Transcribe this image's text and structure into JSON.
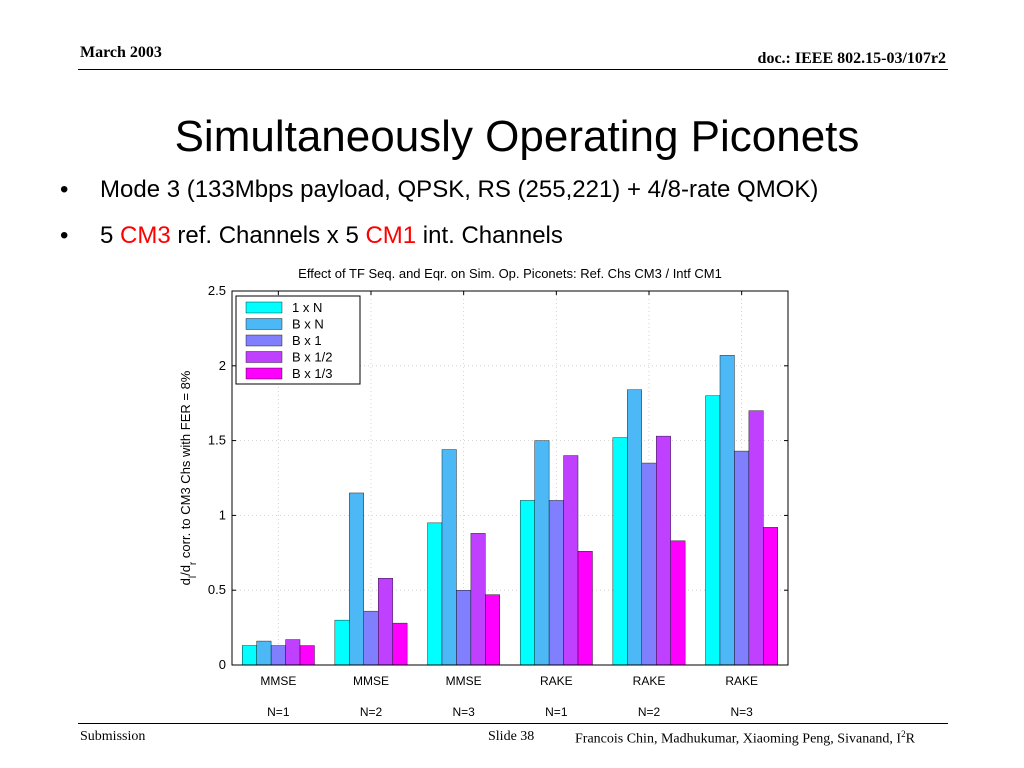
{
  "header": {
    "date": "March 2003",
    "doc": "doc.: IEEE 802.15-03/107r2"
  },
  "title": "Simultaneously Operating Piconets",
  "bullets": {
    "b1": "Mode 3 (133Mbps payload, QPSK, RS (255,221) + 4/8-rate QMOK)",
    "b2": {
      "pre": "5 ",
      "ref": "CM3",
      "mid": " ref. Channels x 5 ",
      "int": "CM1",
      "post": " int. Channels"
    },
    "bullet_glyph": "•"
  },
  "colors": {
    "highlight": "#ff0000",
    "text": "#000000"
  },
  "chart_data": {
    "type": "bar",
    "title": "Effect of TF Seq. and Eqr. on Sim. Op. Piconets: Ref. Chs CM3 / Intf CM1",
    "ylabel": "d_l/d_r corr. to CM3 Chs with FER = 8%",
    "ylabel_parts": {
      "d1": "d",
      "s1": "l",
      "mid": "/d",
      "s2": "r",
      "rest": " corr. to CM3 Chs with FER = 8%"
    },
    "ylim": [
      0,
      2.5
    ],
    "yticks": [
      "0",
      "0.5",
      "1",
      "1.5",
      "2",
      "2.5"
    ],
    "categories": [
      {
        "line1": "MMSE",
        "line2": "N=1"
      },
      {
        "line1": "MMSE",
        "line2": "N=2"
      },
      {
        "line1": "MMSE",
        "line2": "N=3"
      },
      {
        "line1": "RAKE",
        "line2": "N=1"
      },
      {
        "line1": "RAKE",
        "line2": "N=2"
      },
      {
        "line1": "RAKE",
        "line2": "N=3"
      }
    ],
    "series": [
      {
        "name": "1 x N",
        "color": "#00ffff",
        "values": [
          0.13,
          0.3,
          0.95,
          1.1,
          1.52,
          1.8
        ]
      },
      {
        "name": "B x N",
        "color": "#4cb8f5",
        "values": [
          0.16,
          1.15,
          1.44,
          1.5,
          1.84,
          2.07
        ]
      },
      {
        "name": "B x 1",
        "color": "#8080ff",
        "values": [
          0.13,
          0.36,
          0.5,
          1.1,
          1.35,
          1.43
        ]
      },
      {
        "name": "B x 1/2",
        "color": "#c040ff",
        "values": [
          0.17,
          0.58,
          0.88,
          1.4,
          1.53,
          1.7
        ]
      },
      {
        "name": "B x 1/3",
        "color": "#ff00ff",
        "values": [
          0.13,
          0.28,
          0.47,
          0.76,
          0.83,
          0.92
        ]
      }
    ],
    "grid": true,
    "legend": "top-left"
  },
  "footer": {
    "submission": "Submission",
    "slide": "Slide 38",
    "authors": "Francois Chin, Madhukumar, Xiaoming Peng, Sivanand, I",
    "authors_sup": "2",
    "authors_tail": "R"
  }
}
